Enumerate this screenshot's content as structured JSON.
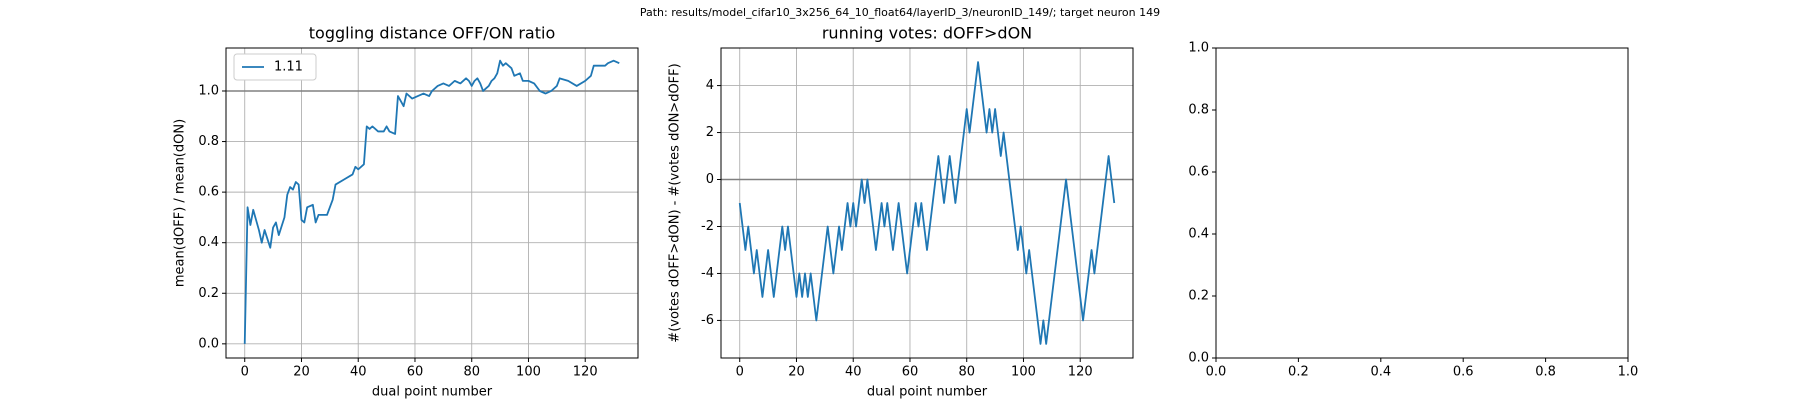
{
  "title": "Path: results/model_cifar10_3x256_64_10_float64/layerID_3/neuronID_149/; target neuron 149",
  "chart_data": [
    {
      "type": "line",
      "title": "toggling distance OFF/ON ratio",
      "xlabel": "dual point number",
      "ylabel": "mean(dOFF) / mean(dON)",
      "x": [
        0,
        1,
        2,
        3,
        5,
        6,
        7,
        9,
        10,
        11,
        12,
        14,
        15,
        16,
        17,
        18,
        19,
        20,
        21,
        22,
        24,
        25,
        26,
        29,
        31,
        32,
        35,
        38,
        39,
        40,
        42,
        43,
        44,
        45,
        47,
        49,
        50,
        51,
        53,
        54,
        55,
        56,
        57,
        59,
        61,
        63,
        65,
        66,
        68,
        70,
        72,
        74,
        76,
        78,
        79,
        80,
        81,
        82,
        83,
        84,
        85,
        86,
        87,
        88,
        89,
        90,
        91,
        92,
        94,
        95,
        97,
        98,
        100,
        102,
        104,
        106,
        108,
        110,
        111,
        114,
        117,
        120,
        122,
        123,
        127,
        128,
        130,
        132
      ],
      "series": [
        {
          "name": "1.11",
          "color": "#1f77b4",
          "values": [
            0.0,
            0.54,
            0.47,
            0.53,
            0.45,
            0.4,
            0.45,
            0.38,
            0.46,
            0.48,
            0.43,
            0.5,
            0.59,
            0.62,
            0.61,
            0.64,
            0.63,
            0.49,
            0.48,
            0.54,
            0.55,
            0.48,
            0.51,
            0.51,
            0.57,
            0.63,
            0.65,
            0.67,
            0.7,
            0.69,
            0.71,
            0.86,
            0.85,
            0.86,
            0.84,
            0.84,
            0.86,
            0.84,
            0.83,
            0.98,
            0.96,
            0.94,
            0.99,
            0.97,
            0.98,
            0.99,
            0.98,
            1.0,
            1.02,
            1.03,
            1.02,
            1.04,
            1.03,
            1.05,
            1.04,
            1.02,
            1.04,
            1.05,
            1.03,
            1.0,
            1.01,
            1.02,
            1.04,
            1.05,
            1.07,
            1.12,
            1.1,
            1.11,
            1.09,
            1.06,
            1.07,
            1.04,
            1.04,
            1.03,
            1.0,
            0.99,
            1.0,
            1.02,
            1.05,
            1.04,
            1.02,
            1.04,
            1.06,
            1.1,
            1.1,
            1.11,
            1.12,
            1.11
          ]
        }
      ],
      "hline": 1.0,
      "hline_color": "#808080",
      "xlim": [
        -6.6,
        138.6
      ],
      "xticks": [
        0,
        20,
        40,
        60,
        80,
        100,
        120
      ],
      "ylim": [
        -0.056,
        1.17
      ],
      "yticks": [
        {
          "value": 0,
          "label": "0.0"
        },
        {
          "value": 0.2,
          "label": "0.2"
        },
        {
          "value": 0.4,
          "label": "0.4"
        },
        {
          "value": 0.6,
          "label": "0.6"
        },
        {
          "value": 0.8,
          "label": "0.8"
        },
        {
          "value": 1,
          "label": "1.0"
        }
      ],
      "grid": true,
      "legend": "upper left"
    },
    {
      "type": "line",
      "title": "running votes: dOFF>dON",
      "xlabel": "dual point number",
      "ylabel": "#(votes dOFF>dON) - #(votes dON>dOFF)",
      "x": [
        0,
        1,
        2,
        3,
        4,
        5,
        6,
        7,
        8,
        9,
        10,
        11,
        12,
        13,
        14,
        15,
        16,
        17,
        18,
        19,
        20,
        21,
        22,
        23,
        24,
        25,
        26,
        27,
        28,
        29,
        30,
        31,
        32,
        33,
        34,
        35,
        36,
        37,
        38,
        39,
        40,
        41,
        42,
        43,
        44,
        45,
        46,
        47,
        48,
        49,
        50,
        51,
        52,
        53,
        54,
        55,
        56,
        57,
        58,
        59,
        60,
        61,
        62,
        63,
        64,
        65,
        66,
        67,
        68,
        69,
        70,
        71,
        72,
        73,
        74,
        75,
        76,
        77,
        78,
        79,
        80,
        81,
        82,
        83,
        84,
        85,
        86,
        87,
        88,
        89,
        90,
        91,
        92,
        93,
        94,
        95,
        96,
        97,
        98,
        99,
        100,
        101,
        102,
        103,
        104,
        105,
        106,
        107,
        108,
        109,
        110,
        111,
        112,
        113,
        114,
        115,
        116,
        117,
        118,
        119,
        120,
        121,
        122,
        123,
        124,
        125,
        126,
        127,
        128,
        129,
        130,
        131,
        132
      ],
      "color": "#1f77b4",
      "values": [
        -1,
        -2,
        -3,
        -2,
        -3,
        -4,
        -3,
        -4,
        -5,
        -4,
        -3,
        -4,
        -5,
        -4,
        -3,
        -2,
        -3,
        -2,
        -3,
        -4,
        -5,
        -4,
        -5,
        -4,
        -5,
        -4,
        -5,
        -6,
        -5,
        -4,
        -3,
        -2,
        -3,
        -4,
        -3,
        -2,
        -3,
        -2,
        -1,
        -2,
        -1,
        -2,
        -1,
        0,
        -1,
        0,
        -1,
        -2,
        -3,
        -2,
        -1,
        -2,
        -1,
        -2,
        -3,
        -2,
        -1,
        -2,
        -3,
        -4,
        -3,
        -2,
        -1,
        -2,
        -1,
        -2,
        -3,
        -2,
        -1,
        0,
        1,
        0,
        -1,
        0,
        1,
        0,
        -1,
        0,
        1,
        2,
        3,
        2,
        3,
        4,
        5,
        4,
        3,
        2,
        3,
        2,
        3,
        2,
        1,
        2,
        1,
        0,
        -1,
        -2,
        -3,
        -2,
        -3,
        -4,
        -3,
        -4,
        -5,
        -6,
        -7,
        -6,
        -7,
        -6,
        -5,
        -4,
        -3,
        -2,
        -1,
        0,
        -1,
        -2,
        -3,
        -4,
        -5,
        -6,
        -5,
        -4,
        -3,
        -4,
        -3,
        -2,
        -1,
        0,
        1,
        0,
        -1
      ],
      "hline": 0,
      "hline_color": "#808080",
      "xlim": [
        -6.6,
        138.6
      ],
      "xticks": [
        0,
        20,
        40,
        60,
        80,
        100,
        120
      ],
      "ylim": [
        -7.6,
        5.6
      ],
      "yticks": [
        -6,
        -4,
        -2,
        0,
        2,
        4
      ],
      "grid": true
    },
    {
      "type": "empty",
      "xlim": [
        0,
        1
      ],
      "xticks": [
        {
          "value": 0,
          "label": "0.0"
        },
        {
          "value": 0.2,
          "label": "0.2"
        },
        {
          "value": 0.4,
          "label": "0.4"
        },
        {
          "value": 0.6,
          "label": "0.6"
        },
        {
          "value": 0.8,
          "label": "0.8"
        },
        {
          "value": 1,
          "label": "1.0"
        }
      ],
      "ylim": [
        0,
        1
      ],
      "yticks": [
        {
          "value": 0,
          "label": "0.0"
        },
        {
          "value": 0.2,
          "label": "0.2"
        },
        {
          "value": 0.4,
          "label": "0.4"
        },
        {
          "value": 0.6,
          "label": "0.6"
        },
        {
          "value": 0.8,
          "label": "0.8"
        },
        {
          "value": 1,
          "label": "1.0"
        }
      ],
      "grid": false
    }
  ]
}
